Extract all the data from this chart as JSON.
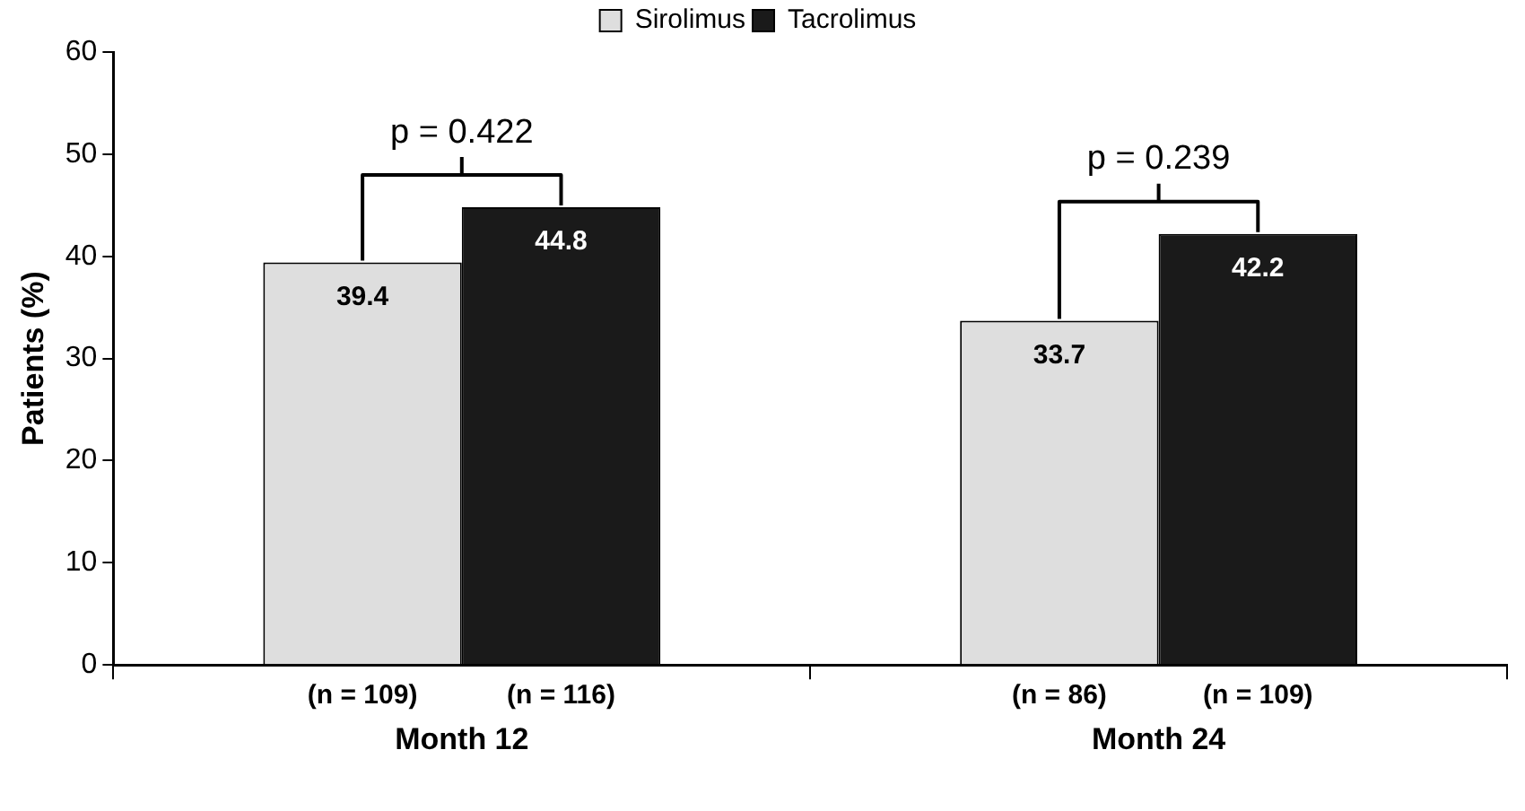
{
  "chart_data": {
    "type": "bar",
    "ylabel": "Patients (%)",
    "categories": [
      "Month 12",
      "Month 24"
    ],
    "series": [
      {
        "name": "Sirolimus",
        "color": "#dedede",
        "values": [
          39.4,
          33.7
        ]
      },
      {
        "name": "Tacrolimus",
        "color": "#1a1a1a",
        "values": [
          44.8,
          42.2
        ]
      }
    ],
    "ylim": [
      0,
      60
    ],
    "yticks": [
      0,
      10,
      20,
      30,
      40,
      50,
      60
    ],
    "grid": false,
    "legend": "top",
    "data_labels": true,
    "annotations": [
      "p = 0.422",
      "p = 0.239",
      "(n = 109)",
      "(n = 116)",
      "(n = 86)",
      "(n = 109)"
    ]
  }
}
